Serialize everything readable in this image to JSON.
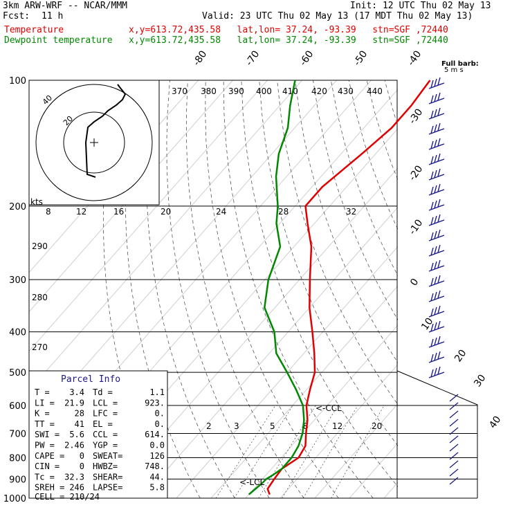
{
  "header": {
    "model": "3km ARW-WRF -- NCAR/MMM",
    "init": "Init: 12 UTC Thu 02 May 13",
    "fcst_label": "Fcst:",
    "fcst_value": "11 h",
    "valid": "Valid: 23 UTC Thu 02 May 13 (17 MDT Thu 02 May 13)",
    "temp_line": "Temperature            x,y=613.72,435.58   lat,lon= 37.24, -93.39   stn=SGF ,72440",
    "dew_line": "Dewpoint temperature   x,y=613.72,435.58   lat,lon= 37.24, -93.39   stn=SGF ,72440"
  },
  "colors": {
    "temperature": "#e00000",
    "dewpoint": "#008800",
    "barbs": "#1a1a8c",
    "isobar": "#000000"
  },
  "barb_legend": {
    "line1": "Full barb:",
    "line2": "5 m s"
  },
  "parcel_info": {
    "title": "Parcel Info",
    "rows": [
      [
        "T  =",
        "3.4",
        "Td =",
        "1.1"
      ],
      [
        "LI =",
        "21.9",
        "LCL =",
        "923."
      ],
      [
        "K  =",
        "28",
        "LFC =",
        "0."
      ],
      [
        "TT =",
        "41",
        "EL  =",
        "0."
      ],
      [
        "SWI =",
        "5.6",
        "CCL =",
        "614."
      ],
      [
        "PW =",
        "2.46",
        "YGP =",
        "0.0"
      ],
      [
        "CAPE =",
        "0",
        "SWEAT=",
        "126"
      ],
      [
        "CIN =",
        "0",
        "HWBZ=",
        "748."
      ],
      [
        "Tc =",
        "32.3",
        "SHEAR=",
        "44."
      ],
      [
        "SREH =",
        "246",
        "LAPSE=",
        "5.8"
      ]
    ],
    "cell": "CELL = 210/24"
  },
  "hodograph": {
    "units": "kts",
    "ring_labels": [
      "20",
      "40"
    ]
  },
  "annotations": {
    "ccl": "<-CCL",
    "lcl": "<-LCL"
  },
  "chart_data": {
    "type": "line",
    "title": "",
    "pressure_levels": [
      100,
      200,
      300,
      400,
      500,
      600,
      700,
      800,
      900,
      1000
    ],
    "temperature_isotherm_labels": [
      "-80",
      "-70",
      "-60",
      "-50",
      "-40",
      "-30",
      "-20",
      "-10",
      "0",
      "10",
      "20",
      "30",
      "40"
    ],
    "theta_labels": [
      "370",
      "380",
      "390",
      "400",
      "410",
      "420",
      "430",
      "440",
      "290",
      "280",
      "270"
    ],
    "hodo_speed_labels": [
      "8",
      "12",
      "16",
      "20",
      "24",
      "28",
      "32"
    ],
    "mixing_ratio_labels": [
      "2",
      "3",
      "5",
      "8",
      "12",
      "20"
    ],
    "series": [
      {
        "name": "Temperature",
        "pressure": [
          980,
          950,
          900,
          850,
          800,
          750,
          700,
          650,
          600,
          550,
          500,
          450,
          400,
          350,
          300,
          250,
          220,
          200,
          180,
          150,
          130,
          115,
          100
        ],
        "values": [
          6,
          4,
          3.4,
          3,
          5,
          4,
          1,
          -2,
          -6,
          -9,
          -12,
          -17,
          -23,
          -30,
          -37,
          -45,
          -52,
          -57,
          -57,
          -54,
          -52,
          -52,
          -53
        ]
      },
      {
        "name": "Dewpoint temperature",
        "pressure": [
          980,
          950,
          920,
          900,
          880,
          850,
          800,
          750,
          700,
          650,
          600,
          550,
          500,
          450,
          400,
          350,
          300,
          250,
          220,
          200,
          170,
          150,
          130,
          115,
          100
        ],
        "values": [
          0,
          0.5,
          1,
          1.1,
          2,
          3,
          3,
          2,
          0,
          -3,
          -7,
          -13,
          -20,
          -28,
          -34,
          -43,
          -49,
          -54,
          -61,
          -65,
          -73,
          -78,
          -82,
          -87,
          -92
        ]
      }
    ]
  }
}
